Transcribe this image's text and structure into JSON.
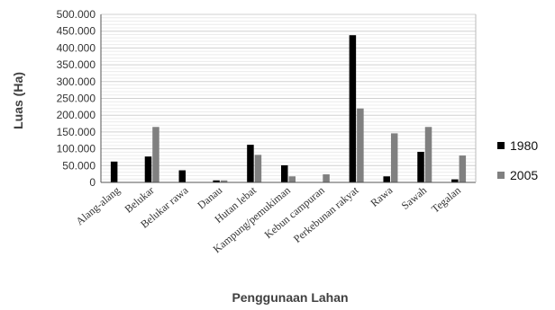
{
  "chart_data": {
    "type": "bar",
    "title": "",
    "xlabel": "Penggunaan Lahan",
    "ylabel": "Luas (Ha)",
    "ylim": [
      0,
      500000
    ],
    "y_ticks": [
      "0",
      "50.000",
      "100.000",
      "150.000",
      "200.000",
      "250.000",
      "300.000",
      "350.000",
      "400.000",
      "450.000",
      "500.000"
    ],
    "grid": true,
    "legend_position": "right",
    "categories": [
      "Alang-alang",
      "Belukar",
      "Belukar rawa",
      "Danau",
      "Hutan lebat",
      "Kampung/pemukiman",
      "Kebun campuran",
      "Perkebunan rakyat",
      "Rawa",
      "Sawah",
      "Tegalan"
    ],
    "series": [
      {
        "name": "1980",
        "color": "#000000",
        "values": [
          62000,
          77000,
          36000,
          6000,
          112000,
          51000,
          0,
          438000,
          18000,
          91000,
          9000
        ]
      },
      {
        "name": "2005",
        "color": "#808080",
        "values": [
          0,
          165000,
          0,
          6000,
          82000,
          18000,
          24000,
          220000,
          146000,
          165000,
          80000
        ]
      }
    ]
  }
}
